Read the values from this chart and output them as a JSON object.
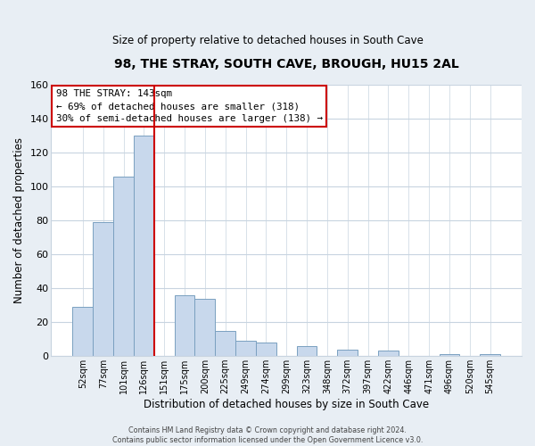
{
  "title": "98, THE STRAY, SOUTH CAVE, BROUGH, HU15 2AL",
  "subtitle": "Size of property relative to detached houses in South Cave",
  "xlabel": "Distribution of detached houses by size in South Cave",
  "ylabel": "Number of detached properties",
  "categories": [
    "52sqm",
    "77sqm",
    "101sqm",
    "126sqm",
    "151sqm",
    "175sqm",
    "200sqm",
    "225sqm",
    "249sqm",
    "274sqm",
    "299sqm",
    "323sqm",
    "348sqm",
    "372sqm",
    "397sqm",
    "422sqm",
    "446sqm",
    "471sqm",
    "496sqm",
    "520sqm",
    "545sqm"
  ],
  "values": [
    29,
    79,
    106,
    130,
    0,
    36,
    34,
    15,
    9,
    8,
    0,
    6,
    0,
    4,
    0,
    3,
    0,
    0,
    1,
    0,
    1
  ],
  "bar_color": "#c8d8ec",
  "bar_edge_color": "#7aa0c0",
  "vline_color": "#cc0000",
  "annotation_lines": [
    "98 THE STRAY: 143sqm",
    "← 69% of detached houses are smaller (318)",
    "30% of semi-detached houses are larger (138) →"
  ],
  "annotation_box_color": "#ffffff",
  "annotation_box_edge": "#cc0000",
  "ylim": [
    0,
    160
  ],
  "yticks": [
    0,
    20,
    40,
    60,
    80,
    100,
    120,
    140,
    160
  ],
  "footer_line1": "Contains HM Land Registry data © Crown copyright and database right 2024.",
  "footer_line2": "Contains public sector information licensed under the Open Government Licence v3.0.",
  "fig_background_color": "#e8eef4",
  "plot_background": "#ffffff"
}
